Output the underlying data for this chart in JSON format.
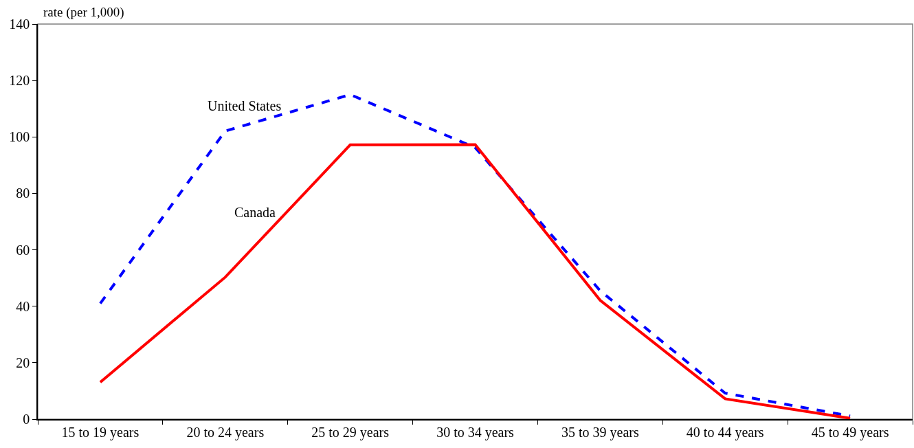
{
  "chart_data": {
    "type": "line",
    "ylabel": "rate (per 1,000)",
    "categories": [
      "15 to 19 years",
      "20 to 24 years",
      "25 to 29 years",
      "30 to 34 years",
      "35 to 39 years",
      "40 to 44 years",
      "45 to 49 years"
    ],
    "series": [
      {
        "name": "United States",
        "color": "#0000ff",
        "line_style": "dashed",
        "values": [
          41.0,
          102.1,
          115.0,
          96.2,
          45.5,
          9.2,
          1.1
        ]
      },
      {
        "name": "Canada",
        "color": "#ff0000",
        "line_style": "solid",
        "values": [
          13.1,
          50.3,
          97.2,
          97.3,
          42.1,
          7.2,
          0.3
        ]
      }
    ],
    "ylim": [
      0,
      140
    ],
    "yticks": [
      0,
      20,
      40,
      60,
      80,
      100,
      120,
      140
    ],
    "grid": false,
    "legend": false
  }
}
